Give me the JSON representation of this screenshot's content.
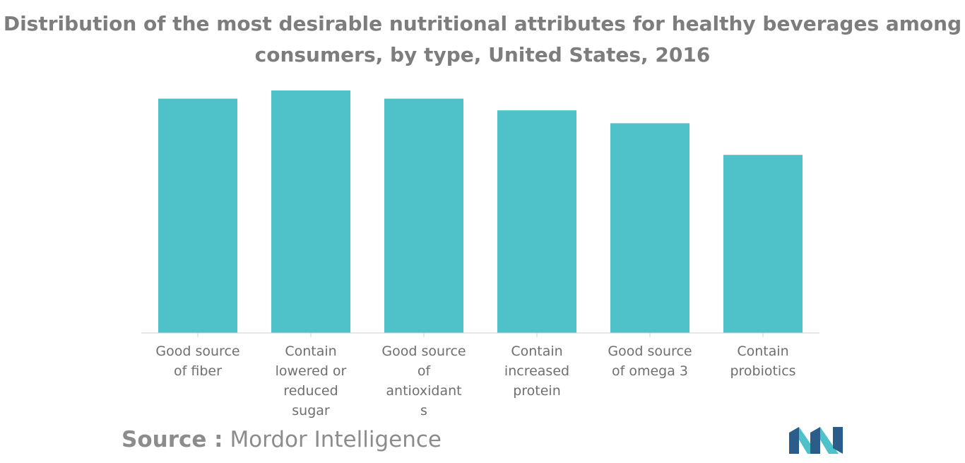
{
  "title_lines": [
    "Distribution of the most desirable nutritional attributes for healthy beverages among",
    "consumers, by type, United States, 2016"
  ],
  "chart_data": {
    "type": "bar",
    "title": "Distribution of the most desirable nutritional attributes for healthy beverages among consumers, by type, United States, 2016",
    "categories": [
      [
        "Good source",
        "of fiber"
      ],
      [
        "Contain",
        "lowered or",
        "reduced",
        "sugar"
      ],
      [
        "Good source",
        "of",
        "antioxidant",
        "s"
      ],
      [
        "Contain",
        "increased",
        "protein"
      ],
      [
        "Good source",
        "of omega 3"
      ],
      [
        "Contain",
        "probiotics"
      ]
    ],
    "values": [
      100,
      103.5,
      100,
      95,
      89.5,
      76
    ],
    "ylim": [
      0,
      105
    ],
    "grid": false,
    "bar_color": "#4fc1c9",
    "axis_color": "#cccccc",
    "label_color": "#6f6f6f"
  },
  "source": {
    "label": "Source :",
    "text": "Mordor Intelligence"
  },
  "logo": {
    "name": "mordor-intelligence-logo",
    "colors": [
      "#2b5d8a",
      "#4fc1c9"
    ]
  }
}
